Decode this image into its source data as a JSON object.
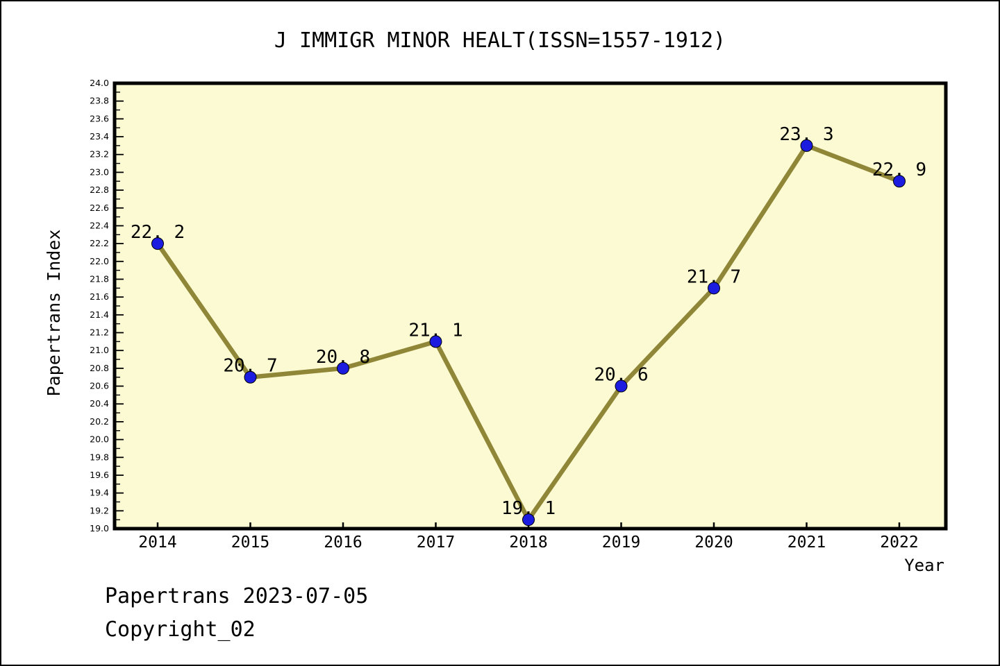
{
  "page": {
    "footer_line1": "Papertrans 2023-07-05",
    "footer_line2": "Copyright_02"
  },
  "chart_data": {
    "type": "line",
    "title": "J IMMIGR MINOR HEALT(ISSN=1557-1912)",
    "xlabel": "Year",
    "ylabel": "Papertrans Index",
    "categories": [
      2014,
      2015,
      2016,
      2017,
      2018,
      2019,
      2020,
      2021,
      2022
    ],
    "values": [
      22.2,
      20.7,
      20.8,
      21.1,
      19.1,
      20.6,
      21.7,
      23.3,
      22.9
    ],
    "point_labels": [
      "22.2",
      "20.7",
      "20.8",
      "21.1",
      "19.1",
      "20.6",
      "21.7",
      "23.3",
      "22.9"
    ],
    "ylim": [
      19.0,
      24.0
    ],
    "y_major_step": 0.2,
    "y_minor_step": 0.1,
    "grid": false,
    "legend_position": "none",
    "colors": {
      "line": "#8F8638",
      "marker": "#1C1CE0",
      "marker_edge": "#000000",
      "plot_background": "#FCFAD2",
      "frame": "#000000",
      "text": "#000000"
    }
  }
}
